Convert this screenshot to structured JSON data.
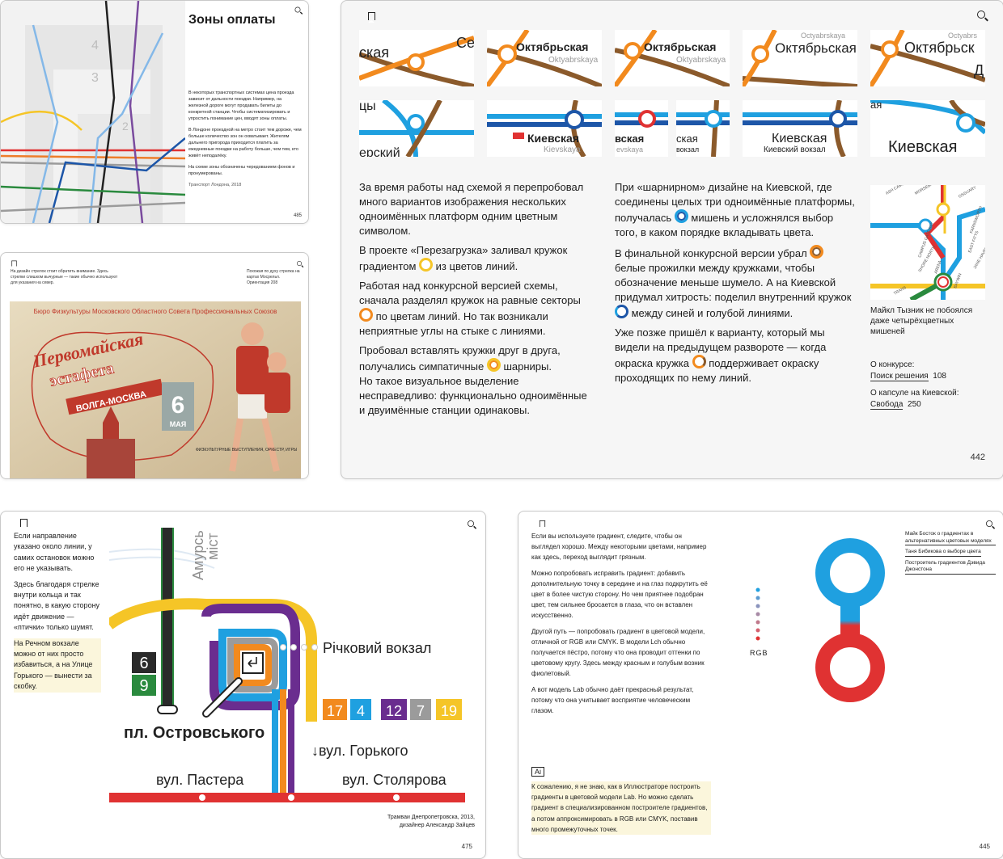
{
  "card1": {
    "title": "Зоны оплаты",
    "para1": "В некоторых транспортных системах цена проезда зависит от дальности поездки. Например, на железной дороге могут продавать билеты до конкретной станции. Чтобы систематизировать и упростить понимание цен, вводят зоны оплаты.",
    "para2": "В Лондоне проездной на метро стоит тем дороже, чем больше количество зон он охватывает. Жителям дальнего пригорода приходится платить за ежедневные поездки на работу больше, чем тем, кто живёт неподалёку.",
    "para3": "На схеме зоны обозначены чередованием фонов и пронумерованы.",
    "caption": "Транспорт Лондона, 2018",
    "page": "485",
    "zones": [
      "4",
      "3",
      "2"
    ]
  },
  "card2": {
    "note_left": "На дизайн стрелок стоит обратить внимание. Здесь стрелки слишком вычурные — такие обычно используют для указания на север.",
    "note_right": "Похожая по духу стрелка на картах Мосрельп. Ориентация 208",
    "poster": {
      "header": "Бюро Физкультуры Московского Областного Совета Профессиональных Союзов",
      "title1": "Первомайская",
      "title2": "эстафета",
      "route": "ВОЛГА-МОСКВА",
      "day": "6",
      "month": "МАЯ",
      "bottom": "ФИЗКУЛЬТУРНЫЕ ВЫСТУПЛЕНИЯ, ОРКЕСТР, ИГРЫ"
    }
  },
  "card3": {
    "tiles_top": [
      {
        "ru": "ская",
        "extra": "Се"
      },
      {
        "ru": "Октябрьская",
        "lat": "Oktyabrskaya"
      },
      {
        "ru": "Октябрьская",
        "lat": "Oktyabrskaya"
      },
      {
        "ru": "Октябрьская",
        "lat": "Octyabrskaya"
      },
      {
        "ru": "Октябрьск",
        "lat": "Octyabrs"
      }
    ],
    "tiles_bottom": [
      {
        "ru": "ерский",
        "extra": "цы"
      },
      {
        "ru": "Киевская",
        "lat": "Kievskaya"
      },
      {
        "ru": "вская",
        "lat": "evskaya",
        "ru2": "ская",
        "lat2": "вокзал"
      },
      {
        "ru": "Киевская",
        "lat": "Киевский вокзал"
      },
      {
        "ru": "Киевская",
        "lat": "Киевский вокзал",
        "extra": "ая"
      }
    ],
    "col1": [
      "За время работы над схемой я перепробовал много вариантов изображения нескольких одноимённых платформ одним цветным символом.",
      [
        "В проекте «Перезагрузка» заливал кружок градиентом ",
        " из цветов линий."
      ],
      [
        "Работая над конкурсной версией схемы, сначала разделял кружок на равные секторы ",
        " по цветам линий. Но так возникали неприятные углы на стыке с линиями."
      ],
      [
        "Пробовал вставлять кружки друг в друга, получались симпатичные ",
        " шарниры."
      ],
      "Но такое визуальное выделение несправедливо: функционально одноимённые и двуимённые станции одинаковы."
    ],
    "col2": [
      [
        "При «шарнирном» дизайне на Киевской, где соединены целых три одноимённые платформы, получалась ",
        " мишень и усложнялся выбор того, в каком порядке вкладывать цвета."
      ],
      [
        "В финальной конкурсной версии убрал ",
        " белые прожилки между кружками, чтобы обозначение меньше шумело. А на Киевской придумал хитрость: поделил внутренний кружок ",
        " между синей и голубой линиями."
      ],
      [
        "Уже позже пришёл к варианту, который мы видели на предыдущем развороте — когда окраска кружка ",
        " поддерживает окраску проходящих по нему линий."
      ]
    ],
    "side_caption": "Майкл Тызник не побоялся даже четырёхцветных мишеней",
    "links": [
      {
        "label": "О конкурсе:",
        "link": "Поиск решения",
        "page": "108"
      },
      {
        "label": "О капсуле на Киевской:",
        "link": "Свобода",
        "page": "250"
      }
    ],
    "map_labels": [
      "ASH CAMPUS",
      "MORSEBAH",
      "OSSUARY",
      "FARNSWORTH",
      "EAST FITTS",
      "JANE HAVEN",
      "CAMPUS GATEWAY",
      "SHORE NORTH",
      "ARENA",
      "BAYWIN",
      "TRANS"
    ],
    "page": "442"
  },
  "card4": {
    "text": [
      "Если направление указано около линии, у самих остановок можно его не указывать.",
      "Здесь благодаря стрелке внутри кольца и так понятно, в какую сторону идёт движение — «птички» только шумят.",
      "На Речном вокзале можно от них просто избавиться, а на Улице Горького — вынести за скобку."
    ],
    "map": {
      "amur1": "Амурсь",
      "amur2": "міст",
      "river": "Річковий вокзал",
      "ostrov": "пл. Островського",
      "gorky": "↓вул. Горького",
      "paster": "вул. Пастера",
      "stolyar": "вул. Столярова",
      "routes_left": [
        "6",
        "9"
      ],
      "routes_right": [
        "17",
        "4",
        "12",
        "7",
        "19"
      ]
    },
    "caption": "Трамваи Днепропетровска, 2013, дизайнер Александр Зайцев",
    "page": "475"
  },
  "card5": {
    "paras": [
      "Если вы используете градиент, следите, чтобы он выглядел хорошо. Между некоторыми цветами, например как здесь, переход выглядит грязным.",
      "Можно попробовать исправить градиент: добавить дополнительную точку в середине и на глаз подкрутить её цвет в более чистую сторону. Но чем приятнее подобран цвет, тем сильнее бросается в глаза, что он вставлен искусственно.",
      "Другой путь — попробовать градиент в цветовой модели, отличной от RGB или CMYK. В модели Lch обычно получается пёстро, потому что она проводит оттенки по цветовому кругу. Здесь между красным и голубым возник фиолетовый.",
      "А вот модель Lab обычно даёт прекрасный результат, потому что она учитывает восприятие человеческим глазом."
    ],
    "ai_badge": "Ai",
    "ai_note": "К сожалению, я не знаю, как в Иллюстраторе построить градиенты в цветовой модели Lab. Но можно сделать градиент в специализированном построителе градиентов, а потом аппроксимировать в RGB или CMYK, поставив много промежуточных точек.",
    "rgb": "RGB",
    "side_links": [
      "Майк Босток о градиентах в альтернативных цветовых моделях",
      "Таня Бибикова о выборе цвета",
      "Построитель градиентов Дэвида Джонстона"
    ],
    "page": "445"
  },
  "colors": {
    "orange": "#f28a1e",
    "brown": "#8b5a2b",
    "blue": "#1fa0e0",
    "darkblue": "#1d56a8",
    "red": "#e03232",
    "yellow": "#f5c527",
    "purple": "#6a2d8f",
    "green": "#2a8a3e"
  }
}
